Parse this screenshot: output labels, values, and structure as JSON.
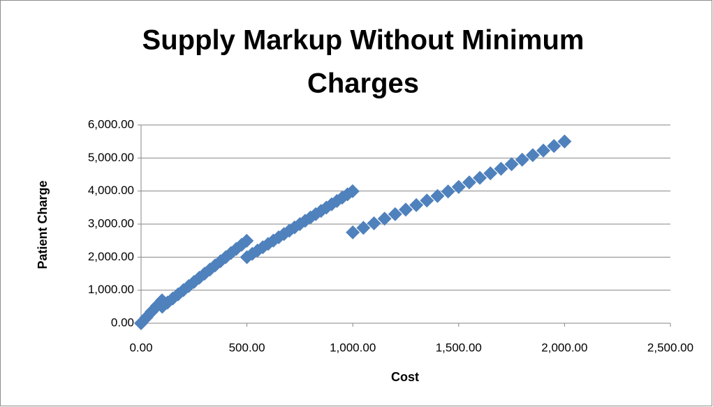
{
  "chart_data": {
    "type": "scatter",
    "title": [
      "Supply Markup Without Minimum",
      "Charges"
    ],
    "x_label": "Cost",
    "y_label": "Patient Charge",
    "color": "#4f81bd",
    "grid": true,
    "xlim": [
      0,
      2500
    ],
    "xticks": [
      {
        "value": 0,
        "label": "0.00"
      },
      {
        "value": 500,
        "label": "500.00"
      },
      {
        "value": 1000,
        "label": "1,000.00"
      },
      {
        "value": 1500,
        "label": "1,500.00"
      },
      {
        "value": 2000,
        "label": "2,000.00"
      },
      {
        "value": 2500,
        "label": "2,500.00"
      }
    ],
    "ylim": [
      0,
      6000
    ],
    "yticks": [
      {
        "value": 0,
        "label": "0.00"
      },
      {
        "value": 1000,
        "label": "1,000.00"
      },
      {
        "value": 2000,
        "label": "2,000.00"
      },
      {
        "value": 3000,
        "label": "3,000.00"
      },
      {
        "value": 4000,
        "label": "4,000.00"
      },
      {
        "value": 5000,
        "label": "5,000.00"
      },
      {
        "value": 6000,
        "label": "6,000.00"
      }
    ],
    "x": [
      0,
      25,
      50,
      75,
      99,
      100,
      125,
      150,
      175,
      200,
      225,
      250,
      275,
      300,
      325,
      350,
      375,
      400,
      425,
      450,
      475,
      499,
      500,
      525,
      550,
      575,
      600,
      625,
      650,
      675,
      700,
      725,
      750,
      775,
      800,
      825,
      850,
      875,
      900,
      925,
      950,
      975,
      999,
      1000,
      1050,
      1100,
      1150,
      1200,
      1250,
      1300,
      1350,
      1400,
      1450,
      1500,
      1550,
      1600,
      1650,
      1700,
      1750,
      1800,
      1850,
      1900,
      1950,
      2000
    ],
    "values": [
      0,
      175,
      350,
      525,
      693,
      500,
      625,
      750,
      875,
      1000,
      1125,
      1250,
      1375,
      1500,
      1625,
      1750,
      1875,
      2000,
      2125,
      2250,
      2375,
      2495,
      2000,
      2100,
      2200,
      2300,
      2400,
      2500,
      2600,
      2700,
      2800,
      2900,
      3000,
      3100,
      3200,
      3300,
      3400,
      3500,
      3600,
      3700,
      3800,
      3900,
      3996,
      2750,
      2887.5,
      3025,
      3162.5,
      3300,
      3437.5,
      3575,
      3712.5,
      3850,
      3987.5,
      4125,
      4262.5,
      4400,
      4537.5,
      4675,
      4812.5,
      4950,
      5087.5,
      5225,
      5362.5,
      5500
    ]
  }
}
